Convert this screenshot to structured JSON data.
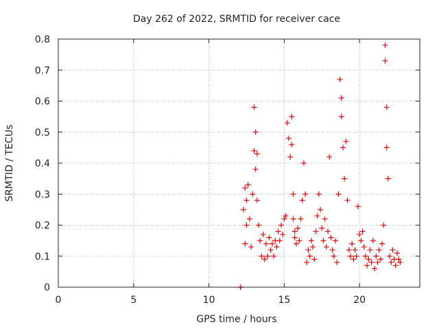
{
  "chart_data": {
    "type": "scatter",
    "title": "Day 262 of 2022, SRMTID for receiver cace",
    "xlabel": "GPS time / hours",
    "ylabel": "SRMTID / TECUs",
    "xlim": [
      0,
      24
    ],
    "ylim": [
      0,
      0.8
    ],
    "xticks": [
      0,
      5,
      10,
      15,
      20
    ],
    "xtick_labels": [
      "0",
      "5",
      "10",
      "15",
      "20"
    ],
    "yticks": [
      0,
      0.1,
      0.2,
      0.3,
      0.4,
      0.5,
      0.6,
      0.7,
      0.8
    ],
    "ytick_labels": [
      "0",
      "0.1",
      "0.2",
      "0.3",
      "0.4",
      "0.5",
      "0.6",
      "0.7",
      "0.8"
    ],
    "grid": true,
    "marker": "+",
    "series": [
      {
        "name": "SRMTID",
        "color": "#ee0000",
        "x": [
          12.1,
          12.1,
          12.3,
          12.4,
          12.4,
          12.5,
          12.5,
          12.6,
          12.7,
          12.8,
          12.9,
          13.0,
          13.0,
          13.1,
          13.1,
          13.2,
          13.2,
          13.3,
          13.4,
          13.5,
          13.6,
          13.7,
          13.8,
          13.9,
          14.0,
          14.1,
          14.2,
          14.3,
          14.4,
          14.5,
          14.6,
          14.7,
          14.8,
          14.9,
          15.0,
          15.1,
          15.2,
          15.3,
          15.4,
          15.5,
          15.5,
          15.6,
          15.6,
          15.7,
          15.7,
          15.8,
          15.9,
          16.0,
          16.1,
          16.2,
          16.3,
          16.4,
          16.5,
          16.6,
          16.7,
          16.8,
          16.9,
          17.0,
          17.1,
          17.2,
          17.3,
          17.4,
          17.5,
          17.6,
          17.7,
          17.8,
          17.9,
          18.0,
          18.1,
          18.2,
          18.3,
          18.4,
          18.5,
          18.6,
          18.7,
          18.8,
          18.8,
          18.9,
          19.0,
          19.1,
          19.2,
          19.3,
          19.4,
          19.5,
          19.6,
          19.7,
          19.8,
          19.9,
          20.0,
          20.1,
          20.2,
          20.3,
          20.4,
          20.5,
          20.6,
          20.7,
          20.8,
          20.9,
          21.0,
          21.1,
          21.2,
          21.3,
          21.4,
          21.5,
          21.6,
          21.7,
          21.7,
          21.8,
          21.8,
          21.9,
          22.0,
          22.1,
          22.2,
          22.3,
          22.4,
          22.5,
          22.6,
          22.7
        ],
        "y": [
          0.0,
          0.0,
          0.25,
          0.32,
          0.14,
          0.28,
          0.2,
          0.33,
          0.22,
          0.13,
          0.3,
          0.58,
          0.44,
          0.38,
          0.5,
          0.28,
          0.43,
          0.2,
          0.15,
          0.1,
          0.17,
          0.09,
          0.14,
          0.1,
          0.16,
          0.12,
          0.14,
          0.1,
          0.15,
          0.13,
          0.18,
          0.15,
          0.2,
          0.17,
          0.22,
          0.23,
          0.53,
          0.48,
          0.42,
          0.46,
          0.55,
          0.3,
          0.22,
          0.18,
          0.16,
          0.14,
          0.19,
          0.15,
          0.22,
          0.28,
          0.4,
          0.3,
          0.08,
          0.12,
          0.1,
          0.15,
          0.13,
          0.09,
          0.18,
          0.23,
          0.3,
          0.25,
          0.19,
          0.15,
          0.22,
          0.13,
          0.18,
          0.42,
          0.16,
          0.12,
          0.1,
          0.15,
          0.08,
          0.3,
          0.67,
          0.55,
          0.61,
          0.45,
          0.35,
          0.47,
          0.28,
          0.12,
          0.1,
          0.14,
          0.09,
          0.12,
          0.1,
          0.26,
          0.17,
          0.15,
          0.18,
          0.13,
          0.1,
          0.07,
          0.09,
          0.12,
          0.08,
          0.15,
          0.06,
          0.1,
          0.08,
          0.12,
          0.09,
          0.14,
          0.2,
          0.78,
          0.73,
          0.58,
          0.45,
          0.35,
          0.1,
          0.08,
          0.12,
          0.09,
          0.07,
          0.11,
          0.09,
          0.08
        ]
      }
    ]
  }
}
